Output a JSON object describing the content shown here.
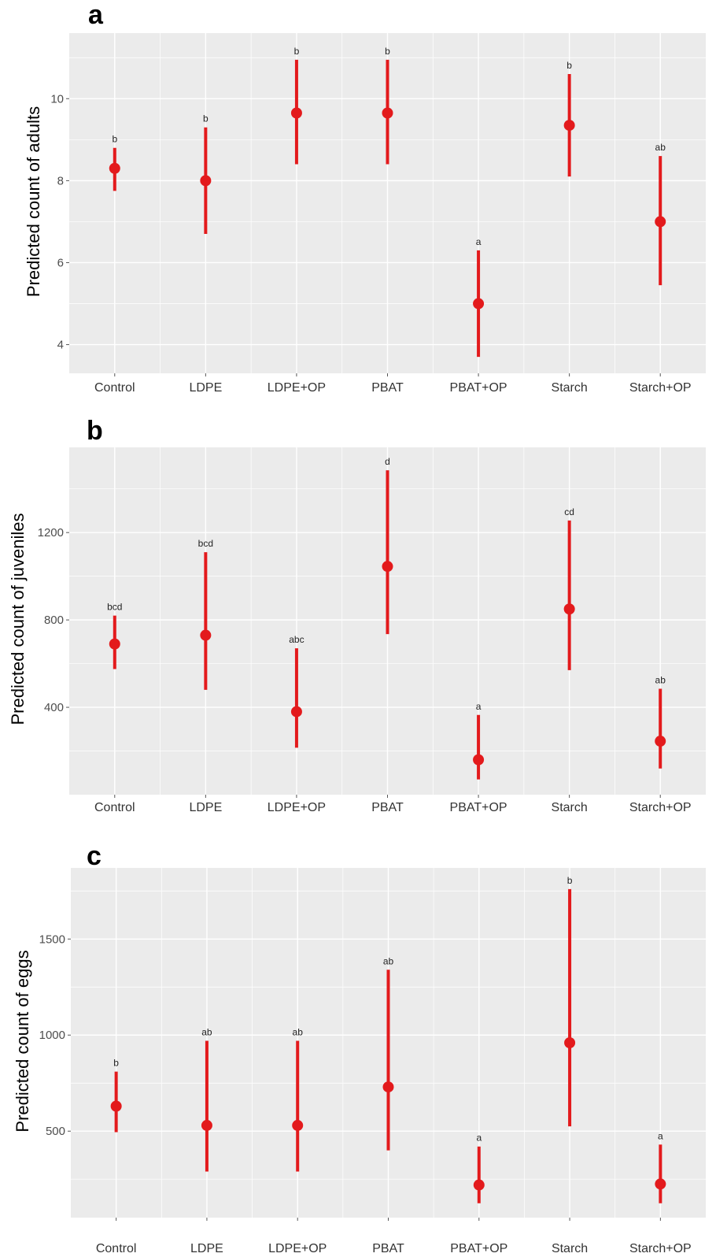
{
  "colors": {
    "point": "#e31a1c",
    "panel_bg": "#ebebeb",
    "grid": "#ffffff",
    "tick_text": "#4d4d4d"
  },
  "chart_data": [
    {
      "type": "scatter",
      "panel": "a",
      "ylabel": "Predicted count of adults",
      "categories": [
        "Control",
        "LDPE",
        "LDPE+OP",
        "PBAT",
        "PBAT+OP",
        "Starch",
        "Starch+OP"
      ],
      "values": [
        8.3,
        8.0,
        9.65,
        9.65,
        5.0,
        9.35,
        7.0
      ],
      "lower": [
        7.75,
        6.7,
        8.4,
        8.4,
        3.7,
        8.1,
        5.45
      ],
      "upper": [
        8.8,
        9.3,
        10.95,
        10.95,
        6.3,
        10.6,
        8.6
      ],
      "letters": [
        "b",
        "b",
        "b",
        "b",
        "a",
        "b",
        "ab"
      ],
      "yticks": [
        4,
        6,
        8,
        10
      ],
      "ylim": [
        3.3,
        11.6
      ],
      "grid": true
    },
    {
      "type": "scatter",
      "panel": "b",
      "ylabel": "Predicted count of juveniles",
      "categories": [
        "Control",
        "LDPE",
        "LDPE+OP",
        "PBAT",
        "PBAT+OP",
        "Starch",
        "Starch+OP"
      ],
      "values": [
        690,
        730,
        380,
        1045,
        160,
        850,
        245
      ],
      "lower": [
        575,
        480,
        215,
        735,
        70,
        570,
        120
      ],
      "upper": [
        820,
        1110,
        670,
        1485,
        365,
        1255,
        485
      ],
      "letters": [
        "bcd",
        "bcd",
        "abc",
        "d",
        "a",
        "cd",
        "ab"
      ],
      "yticks": [
        400,
        800,
        1200
      ],
      "ylim": [
        0,
        1590
      ],
      "grid": true
    },
    {
      "type": "scatter",
      "panel": "c",
      "ylabel": "Predicted count of eggs",
      "categories": [
        "Control",
        "LDPE",
        "LDPE+OP",
        "PBAT",
        "PBAT+OP",
        "Starch",
        "Starch+OP"
      ],
      "values": [
        630,
        530,
        530,
        730,
        220,
        960,
        225
      ],
      "lower": [
        495,
        290,
        290,
        400,
        125,
        525,
        125
      ],
      "upper": [
        810,
        970,
        970,
        1340,
        420,
        1760,
        430
      ],
      "letters": [
        "b",
        "ab",
        "ab",
        "ab",
        "a",
        "b",
        "a"
      ],
      "yticks": [
        500,
        1000,
        1500
      ],
      "ylim": [
        50,
        1870
      ],
      "grid": true
    }
  ]
}
